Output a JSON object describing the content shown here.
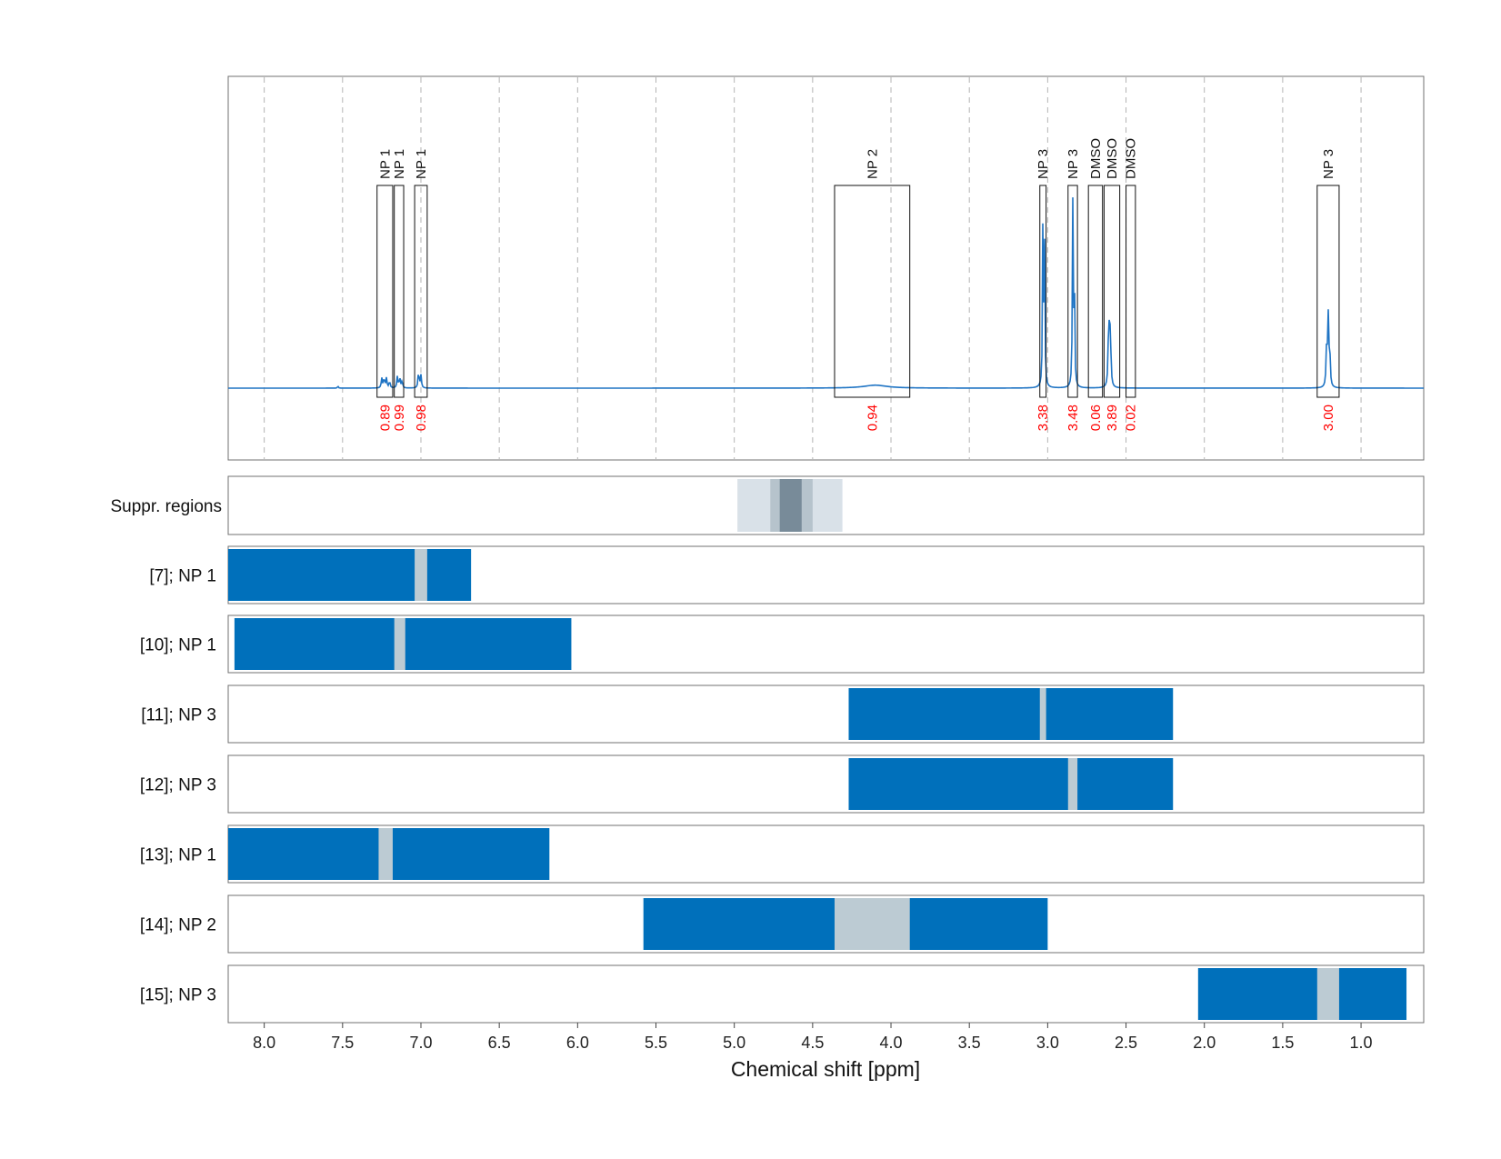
{
  "chart_data": {
    "type": "line",
    "xlabel": "Chemical shift [ppm]",
    "xlim": [
      8.23,
      0.6
    ],
    "xticks": [
      "8.0",
      "7.5",
      "7.0",
      "6.5",
      "6.0",
      "5.5",
      "5.0",
      "4.5",
      "4.0",
      "3.5",
      "3.0",
      "2.5",
      "2.0",
      "1.5",
      "1.0"
    ],
    "x_reversed": true,
    "grid": true,
    "spectrum": {
      "baseline": 0,
      "peaks": [
        {
          "shift": 7.53,
          "height": 0.012,
          "width": 0.003
        },
        {
          "shift": 7.25,
          "height": 0.05,
          "width": 0.004
        },
        {
          "shift": 7.235,
          "height": 0.05,
          "width": 0.004
        },
        {
          "shift": 7.22,
          "height": 0.05,
          "width": 0.004
        },
        {
          "shift": 7.2,
          "height": 0.035,
          "width": 0.004
        },
        {
          "shift": 7.15,
          "height": 0.06,
          "width": 0.004
        },
        {
          "shift": 7.135,
          "height": 0.05,
          "width": 0.004
        },
        {
          "shift": 7.12,
          "height": 0.035,
          "width": 0.004
        },
        {
          "shift": 7.015,
          "height": 0.085,
          "width": 0.004
        },
        {
          "shift": 7.0,
          "height": 0.065,
          "width": 0.004
        },
        {
          "shift": 4.1,
          "height": 0.015,
          "width": 0.09
        },
        {
          "shift": 3.03,
          "height": 0.9,
          "width": 0.003
        },
        {
          "shift": 3.02,
          "height": 0.7,
          "width": 0.003
        },
        {
          "shift": 2.84,
          "height": 0.92,
          "width": 0.003
        },
        {
          "shift": 2.83,
          "height": 0.6,
          "width": 0.003
        },
        {
          "shift": 2.61,
          "height": 0.38,
          "width": 0.004
        },
        {
          "shift": 2.6,
          "height": 0.3,
          "width": 0.004
        },
        {
          "shift": 1.22,
          "height": 0.18,
          "width": 0.004
        },
        {
          "shift": 1.21,
          "height": 0.36,
          "width": 0.004
        },
        {
          "shift": 1.2,
          "height": 0.18,
          "width": 0.004
        }
      ]
    },
    "annotations": [
      {
        "label": "NP 1",
        "from": 7.28,
        "to": 7.18,
        "integral": "0.89"
      },
      {
        "label": "NP 1",
        "from": 7.17,
        "to": 7.11,
        "integral": "0.99"
      },
      {
        "label": "NP 1",
        "from": 7.04,
        "to": 6.96,
        "integral": "0.98"
      },
      {
        "label": "NP 2",
        "from": 4.36,
        "to": 3.88,
        "integral": "0.94"
      },
      {
        "label": "NP 3",
        "from": 3.05,
        "to": 3.01,
        "integral": "3.38"
      },
      {
        "label": "NP 3",
        "from": 2.87,
        "to": 2.81,
        "integral": "3.48"
      },
      {
        "label": "DMSO",
        "from": 2.74,
        "to": 2.65,
        "integral": "0.06"
      },
      {
        "label": "DMSO",
        "from": 2.64,
        "to": 2.54,
        "integral": "3.89"
      },
      {
        "label": "DMSO",
        "from": 2.5,
        "to": 2.44,
        "integral": "0.02"
      },
      {
        "label": "NP 3",
        "from": 1.28,
        "to": 1.14,
        "integral": "3.00"
      }
    ],
    "suppression": {
      "label": "Suppr. regions",
      "layers": [
        {
          "from": 4.98,
          "to": 4.31,
          "color": "#d9e1e8"
        },
        {
          "from": 4.77,
          "to": 4.5,
          "color": "#b6c3cc"
        },
        {
          "from": 4.71,
          "to": 4.57,
          "color": "#788b99"
        }
      ]
    },
    "tracks": [
      {
        "label": "[7]; NP 1",
        "blue": [
          8.23,
          6.68
        ],
        "gray": [
          7.04,
          6.96
        ]
      },
      {
        "label": "[10]; NP 1",
        "blue": [
          8.19,
          6.04
        ],
        "gray": [
          7.17,
          7.1
        ]
      },
      {
        "label": "[11]; NP 3",
        "blue": [
          4.27,
          2.2
        ],
        "gray": [
          3.05,
          3.01
        ]
      },
      {
        "label": "[12]; NP 3",
        "blue": [
          4.27,
          2.2
        ],
        "gray": [
          2.87,
          2.81
        ]
      },
      {
        "label": "[13]; NP 1",
        "blue": [
          8.23,
          6.18
        ],
        "gray": [
          7.27,
          7.18
        ]
      },
      {
        "label": "[14]; NP 2",
        "blue": [
          5.58,
          3.0
        ],
        "gray": [
          4.36,
          3.88
        ]
      },
      {
        "label": "[15]; NP 3",
        "blue": [
          2.04,
          0.71
        ],
        "gray": [
          1.28,
          1.14
        ]
      }
    ],
    "colors": {
      "spectrum": "#1f74c4",
      "region": "#0070bb",
      "excluded": "#bccbd3",
      "integral": "#ff0000"
    }
  }
}
